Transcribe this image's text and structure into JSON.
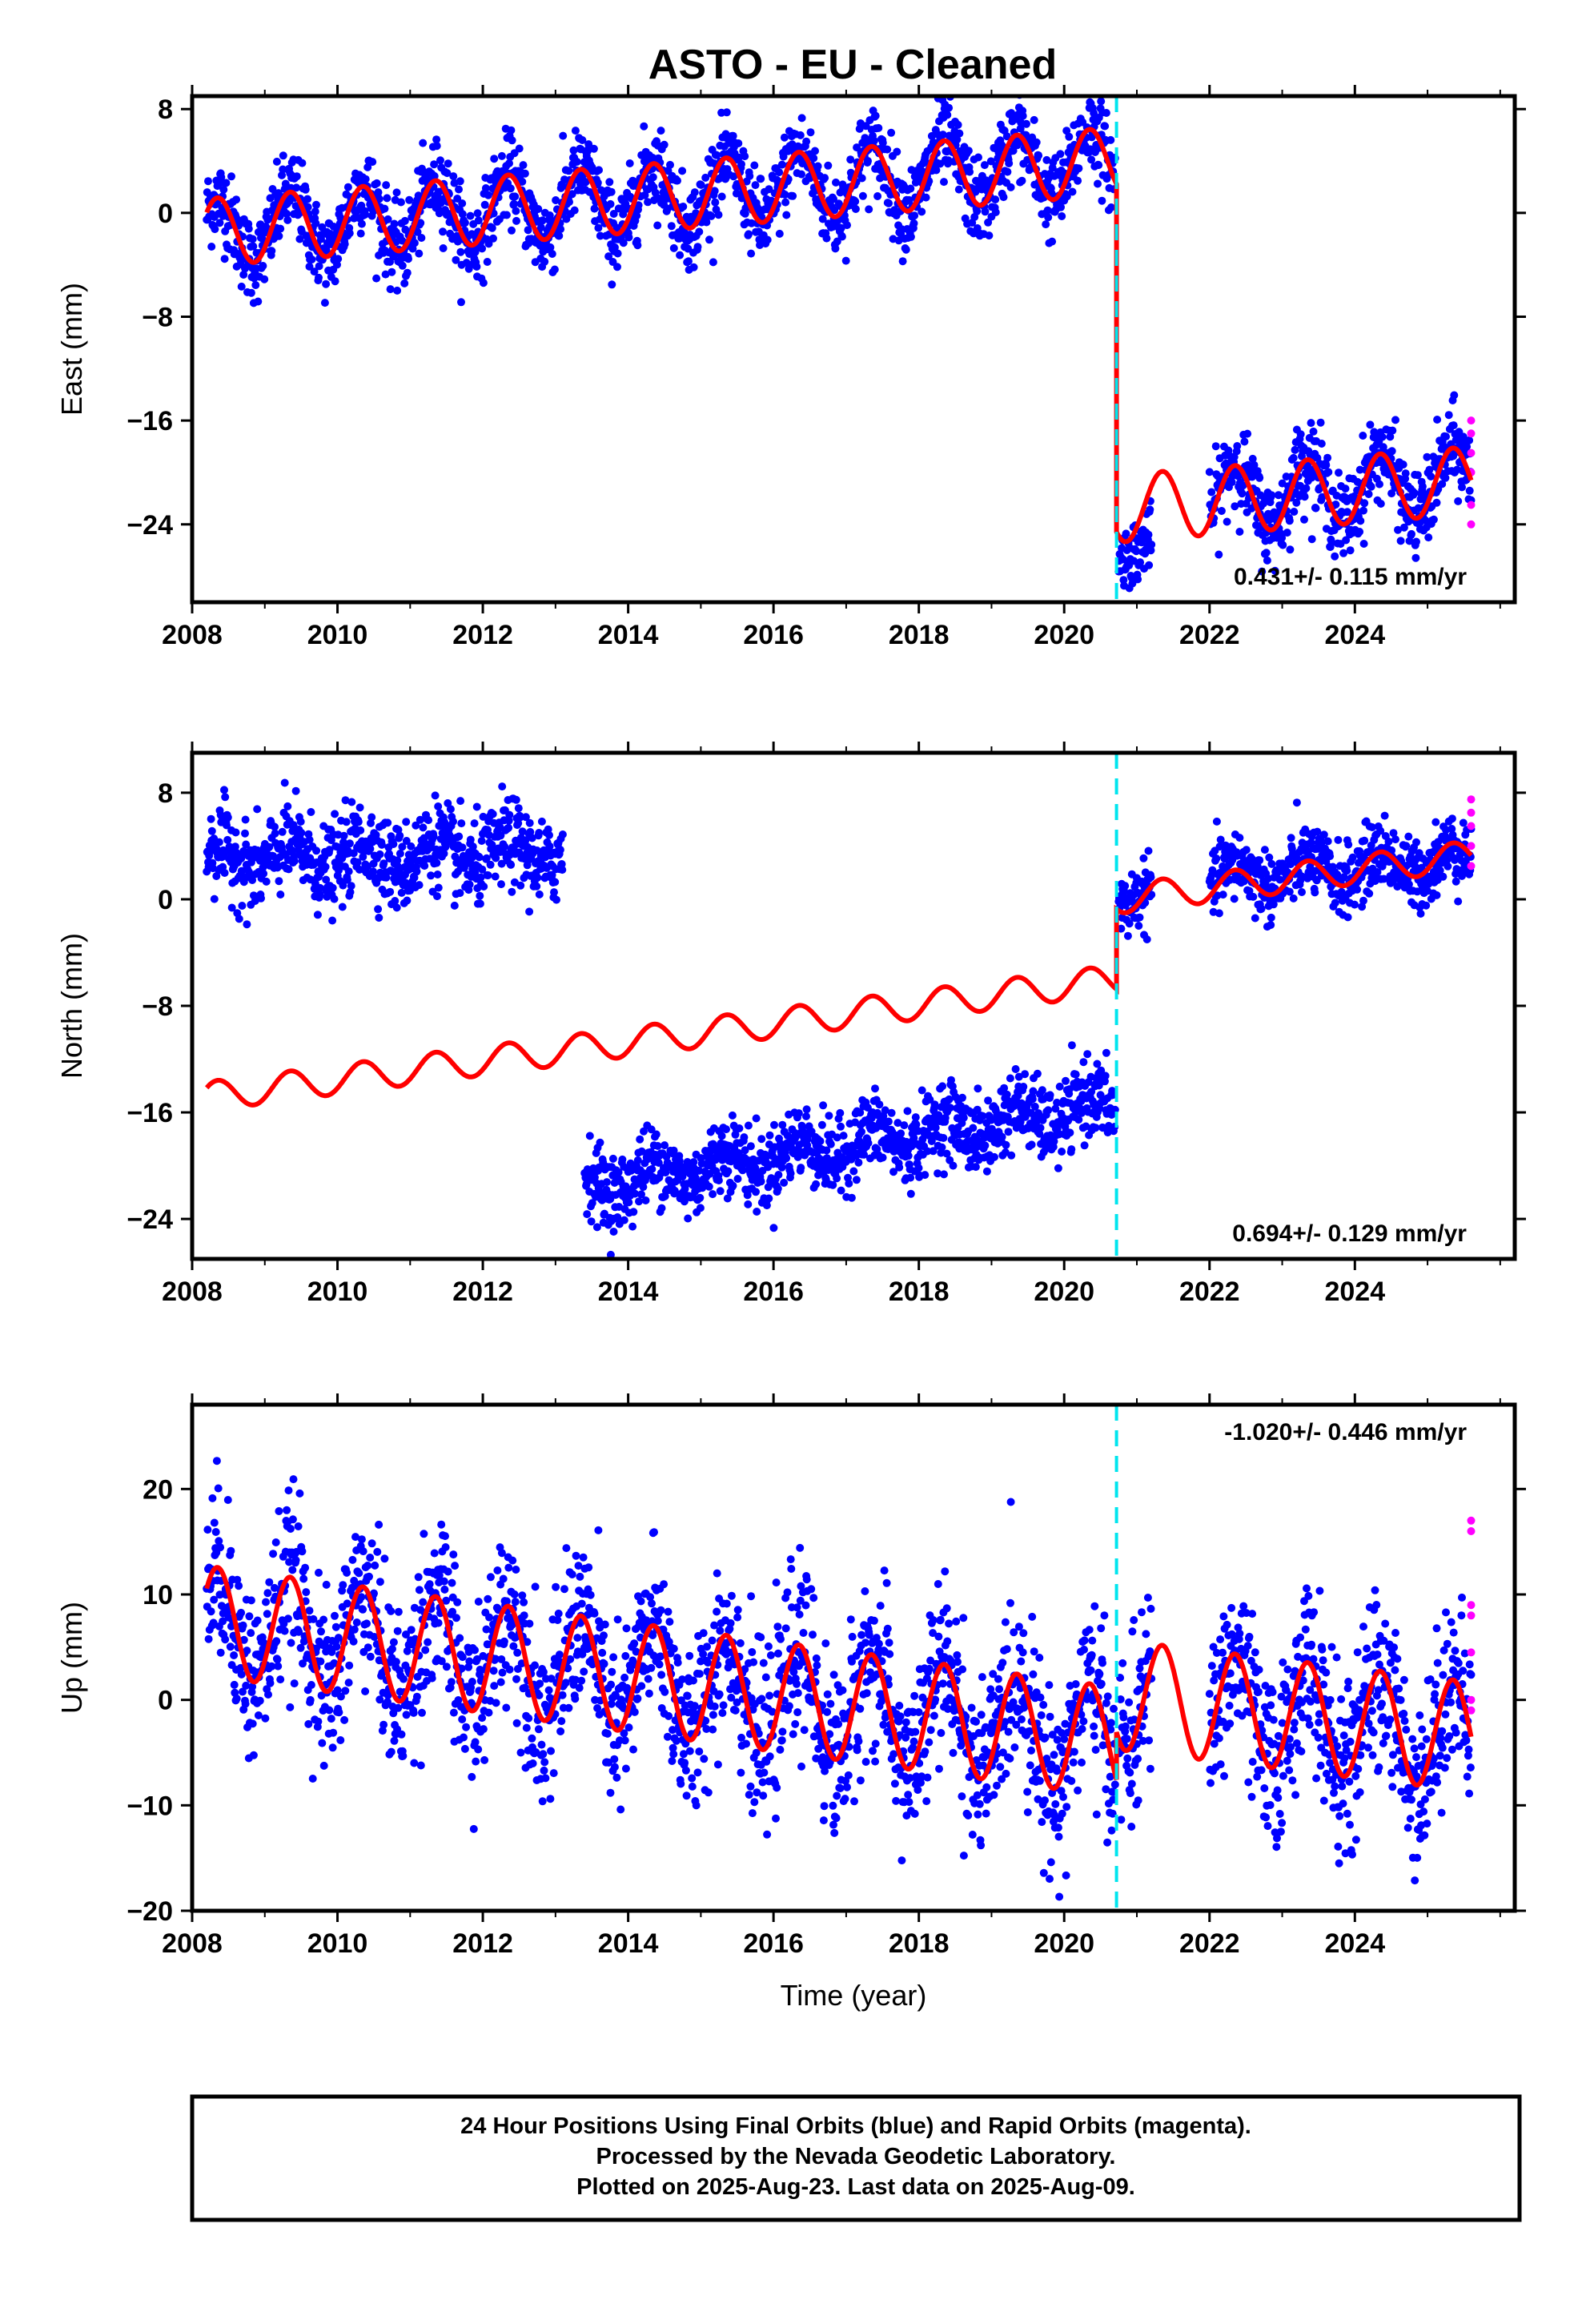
{
  "chart_data": {
    "type": "scatter",
    "title": "ASTO  - EU - Cleaned",
    "xlabel": "Time (year)",
    "xlim": [
      2008,
      2026.2
    ],
    "xticks": [
      2008,
      2010,
      2012,
      2014,
      2016,
      2018,
      2020,
      2022,
      2024
    ],
    "offset_event_year": 2020.72,
    "colors": {
      "final": "#0000ff",
      "rapid": "#ff00ff",
      "model": "#ff0000",
      "event": "#00e5ee"
    },
    "panels": [
      {
        "name": "east",
        "ylabel": "East (mm)",
        "ylim": [
          -30,
          9
        ],
        "yticks": [
          8,
          0,
          -8,
          -16,
          -24
        ],
        "rate_text": "0.431+/- 0.115 mm/yr",
        "rate_position": "bottom-right",
        "data_segments": [
          {
            "x_start": 2008.2,
            "x_end": 2020.7,
            "y_start": -1.5,
            "y_end": 4.0,
            "amplitude": 2.5,
            "noise": 1.6
          },
          {
            "x_start": 2020.75,
            "x_end": 2021.2,
            "y_start": -25.5,
            "y_end": -25.3,
            "amplitude": 1.0,
            "noise": 1.2
          },
          {
            "x_start": 2022.0,
            "x_end": 2025.6,
            "y_start": -22.0,
            "y_end": -20.6,
            "amplitude": 2.5,
            "noise": 1.6
          }
        ],
        "model_segments": [
          {
            "x_start": 2008.2,
            "x_end": 2020.72,
            "y_start": -1.5,
            "y_end": 4.0,
            "amplitude": 2.6
          },
          {
            "x_start": 2020.72,
            "x_end": 2025.6,
            "y_start": -22.8,
            "y_end": -20.6,
            "amplitude": 2.6
          }
        ],
        "rapid_points": [
          [
            2025.6,
            -16.0
          ],
          [
            2025.6,
            -17.0
          ],
          [
            2025.6,
            -18.5
          ],
          [
            2025.6,
            -20.0
          ],
          [
            2025.6,
            -22.5
          ],
          [
            2025.6,
            -24.0
          ]
        ]
      },
      {
        "name": "north",
        "ylabel": "North (mm)",
        "ylim": [
          -27,
          11
        ],
        "yticks": [
          8,
          0,
          -8,
          -16,
          -24
        ],
        "rate_text": "0.694+/- 0.129 mm/yr",
        "rate_position": "bottom-right",
        "data_segments": [
          {
            "x_start": 2008.2,
            "x_end": 2013.1,
            "y_start": 3.0,
            "y_end": 3.5,
            "amplitude": 1.0,
            "noise": 1.6
          },
          {
            "x_start": 2013.4,
            "x_end": 2020.7,
            "y_start": -21.5,
            "y_end": -15.5,
            "amplitude": 1.0,
            "noise": 1.4
          },
          {
            "x_start": 2020.75,
            "x_end": 2021.2,
            "y_start": 0.0,
            "y_end": 0.5,
            "amplitude": 0.5,
            "noise": 1.2
          },
          {
            "x_start": 2022.0,
            "x_end": 2025.6,
            "y_start": 1.5,
            "y_end": 3.0,
            "amplitude": 1.0,
            "noise": 1.3
          }
        ],
        "model_segments": [
          {
            "x_start": 2008.2,
            "x_end": 2020.72,
            "y_start": -14.8,
            "y_end": -6.0,
            "amplitude": 1.1
          },
          {
            "x_start": 2020.72,
            "x_end": 2025.6,
            "y_start": 0.0,
            "y_end": 3.3,
            "amplitude": 1.1
          }
        ],
        "rapid_points": [
          [
            2025.6,
            7.5
          ],
          [
            2025.6,
            6.5
          ],
          [
            2025.6,
            5.5
          ],
          [
            2025.6,
            4.0
          ],
          [
            2025.6,
            2.5
          ]
        ]
      },
      {
        "name": "up",
        "ylabel": "Up (mm)",
        "ylim": [
          -20,
          28
        ],
        "yticks": [
          20,
          10,
          0,
          -10,
          -20
        ],
        "rate_text": "-1.020+/- 0.446 mm/yr",
        "rate_position": "top-right",
        "data_segments": [
          {
            "x_start": 2008.2,
            "x_end": 2020.7,
            "y_start": 7.5,
            "y_end": -4.0,
            "amplitude": 5.0,
            "noise": 4.0
          },
          {
            "x_start": 2020.75,
            "x_end": 2021.2,
            "y_start": 0.5,
            "y_end": 0.5,
            "amplitude": 5.0,
            "noise": 4.0
          },
          {
            "x_start": 2022.0,
            "x_end": 2025.6,
            "y_start": -1.0,
            "y_end": -3.5,
            "amplitude": 5.0,
            "noise": 4.0
          }
        ],
        "model_segments": [
          {
            "x_start": 2008.2,
            "x_end": 2020.72,
            "y_start": 7.5,
            "y_end": -4.0,
            "amplitude": 5.2
          },
          {
            "x_start": 2020.72,
            "x_end": 2025.6,
            "y_start": 0.5,
            "y_end": -3.5,
            "amplitude": 5.2
          }
        ],
        "rapid_points": [
          [
            2025.6,
            17.0
          ],
          [
            2025.6,
            16.0
          ],
          [
            2025.6,
            9.0
          ],
          [
            2025.6,
            8.0
          ],
          [
            2025.6,
            4.5
          ],
          [
            2025.6,
            0.0
          ],
          [
            2025.6,
            -1.0
          ]
        ]
      }
    ]
  },
  "footer": {
    "line1": "24 Hour Positions Using Final Orbits (blue) and Rapid Orbits (magenta).",
    "line2": "Processed by the Nevada Geodetic Laboratory.",
    "line3": "Plotted on 2025-Aug-23. Last data on 2025-Aug-09."
  }
}
